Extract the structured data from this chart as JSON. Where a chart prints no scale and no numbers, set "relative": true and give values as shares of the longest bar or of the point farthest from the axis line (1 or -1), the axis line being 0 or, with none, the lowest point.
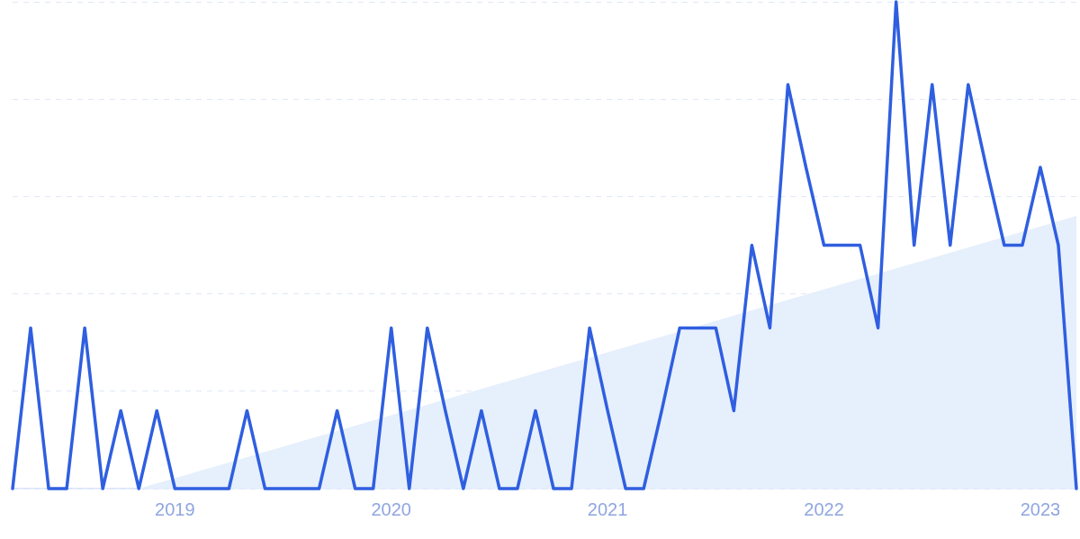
{
  "chart_data": {
    "type": "line",
    "relative": true,
    "grid": "y",
    "line_style": "solid",
    "marker": "none",
    "x": [
      "2018-04",
      "2018-05",
      "2018-06",
      "2018-07",
      "2018-08",
      "2018-09",
      "2018-10",
      "2018-11",
      "2018-12",
      "2019-01",
      "2019-02",
      "2019-03",
      "2019-04",
      "2019-05",
      "2019-06",
      "2019-07",
      "2019-08",
      "2019-09",
      "2019-10",
      "2019-11",
      "2019-12",
      "2020-01",
      "2020-02",
      "2020-03",
      "2020-04",
      "2020-05",
      "2020-06",
      "2020-07",
      "2020-08",
      "2020-09",
      "2020-10",
      "2020-11",
      "2020-12",
      "2021-01",
      "2021-02",
      "2021-03",
      "2021-04",
      "2021-05",
      "2021-06",
      "2021-07",
      "2021-08",
      "2021-09",
      "2021-10",
      "2021-11",
      "2021-12",
      "2022-01",
      "2022-02",
      "2022-03",
      "2022-04",
      "2022-05",
      "2022-06",
      "2022-07",
      "2022-08",
      "2022-09",
      "2022-10",
      "2022-11",
      "2022-12",
      "2023-01",
      "2023-02",
      "2023-03"
    ],
    "xlim": [
      "2018-04",
      "2023-03"
    ],
    "xticks": [
      "2019",
      "2020",
      "2021",
      "2022",
      "2023"
    ],
    "series": [
      {
        "type": "area",
        "color": "#e6effc",
        "x": [
          "2018-11",
          "2023-03"
        ],
        "values": [
          0,
          0.56
        ]
      },
      {
        "color": "#2f5fe0",
        "values": [
          0,
          0.33,
          0,
          0,
          0.33,
          0,
          0.16,
          0,
          0.16,
          0,
          0,
          0,
          0,
          0.16,
          0,
          0,
          0,
          0,
          0.16,
          0,
          0,
          0.33,
          0,
          0.33,
          0.16,
          0,
          0.16,
          0,
          0,
          0.16,
          0,
          0,
          0.33,
          0.16,
          0,
          0,
          0.16,
          0.33,
          0.33,
          0.33,
          0.16,
          0.5,
          0.33,
          0.83,
          0.66,
          0.5,
          0.5,
          0.5,
          0.33,
          1,
          0.5,
          0.83,
          0.5,
          0.83,
          0.66,
          0.5,
          0.5,
          0.66,
          0.5,
          0
        ]
      }
    ]
  }
}
